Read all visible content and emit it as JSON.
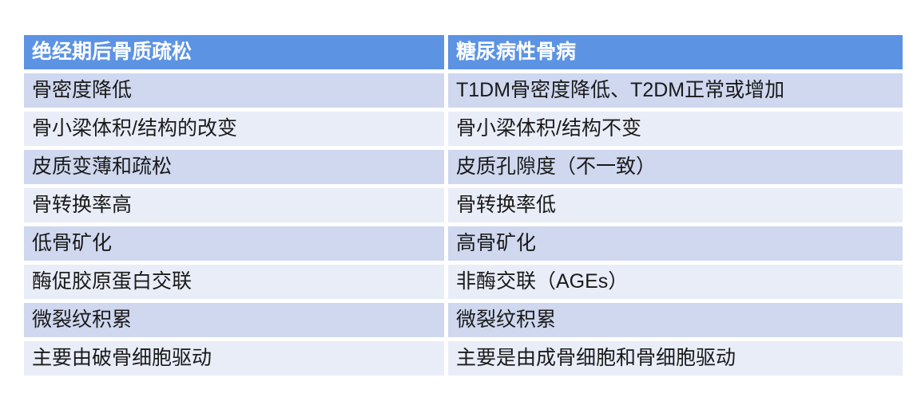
{
  "table": {
    "columns": [
      {
        "header": "绝经期后骨质疏松"
      },
      {
        "header": "糖尿病性骨病"
      }
    ],
    "rows": [
      [
        "骨密度降低",
        "T1DM骨密度降低、T2DM正常或增加"
      ],
      [
        "骨小梁体积/结构的改变",
        "骨小梁体积/结构不变"
      ],
      [
        "皮质变薄和疏松",
        "皮质孔隙度（不一致）"
      ],
      [
        "骨转换率高",
        "骨转换率低"
      ],
      [
        "低骨矿化",
        "高骨矿化"
      ],
      [
        "酶促胶原蛋白交联",
        "非酶交联（AGEs）"
      ],
      [
        "微裂纹积累",
        "微裂纹积累"
      ],
      [
        "主要由破骨细胞驱动",
        "主要是由成骨细胞和骨细胞驱动"
      ]
    ],
    "colors": {
      "header_bg": "#5C93E3",
      "header_text": "#FFFFFF",
      "row_odd_bg": "#CFD8EF",
      "row_even_bg": "#E9EDF8",
      "body_text": "#1A1A1A",
      "page_bg": "#FFFFFF"
    }
  }
}
